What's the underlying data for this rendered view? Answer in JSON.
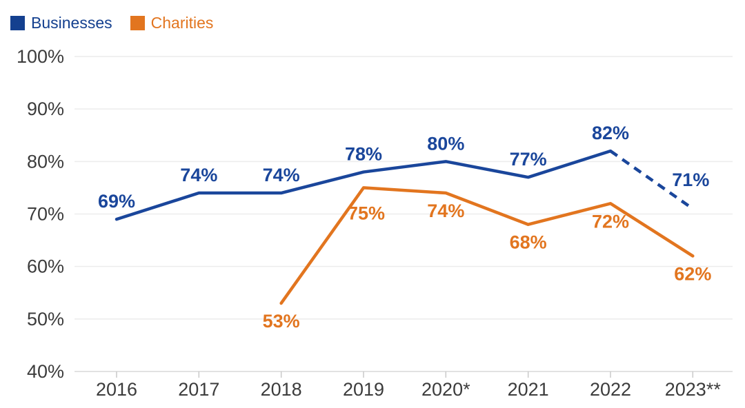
{
  "legend": {
    "items": [
      {
        "label": "Businesses",
        "color": "#14408F"
      },
      {
        "label": "Charities",
        "color": "#E2751F"
      }
    ]
  },
  "chart_data": {
    "type": "line",
    "categories": [
      "2016",
      "2017",
      "2018",
      "2019",
      "2020*",
      "2021",
      "2022",
      "2023**"
    ],
    "series": [
      {
        "name": "Businesses",
        "color": "#1A469B",
        "swatch_color": "#14408F",
        "values": [
          69,
          74,
          74,
          78,
          80,
          77,
          82,
          71
        ],
        "dashed_from_index": 6,
        "labels": [
          "69%",
          "74%",
          "74%",
          "78%",
          "80%",
          "77%",
          "82%",
          "71%"
        ]
      },
      {
        "name": "Charities",
        "color": "#E2751F",
        "swatch_color": "#E2751F",
        "values": [
          null,
          null,
          53,
          75,
          74,
          68,
          72,
          62
        ],
        "labels": [
          null,
          null,
          "53%",
          "75%",
          "74%",
          "68%",
          "72%",
          "62%"
        ]
      }
    ],
    "y_ticks": [
      100,
      90,
      80,
      70,
      60,
      50,
      40
    ],
    "y_tick_labels": [
      "100%",
      "90%",
      "80%",
      "70%",
      "60%",
      "50%",
      "40%"
    ],
    "ylim": [
      40,
      100
    ],
    "title": "",
    "xlabel": "",
    "ylabel": "",
    "grid": "horizontal",
    "legend_position": "top-left",
    "data_labels": "visible"
  }
}
